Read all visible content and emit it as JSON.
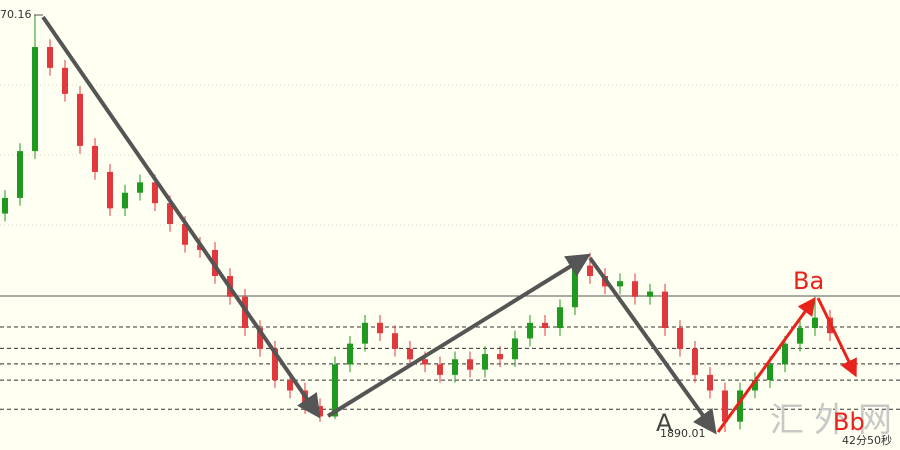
{
  "chart_data": {
    "type": "candlestick",
    "open": [
      1932,
      1935,
      1944,
      1964,
      1960,
      1955,
      1945,
      1940,
      1933,
      1936,
      1938,
      1934,
      1930,
      1926,
      1925,
      1920,
      1916,
      1910,
      1906,
      1900,
      1898,
      1895,
      1893,
      1903,
      1907,
      1911,
      1909,
      1906,
      1904,
      1903,
      1901,
      1904,
      1902,
      1905,
      1904,
      1908,
      1911,
      1910,
      1914,
      1922,
      1920,
      1918,
      1919,
      1916,
      1917,
      1910,
      1906,
      1901,
      1898,
      1892,
      1898,
      1900,
      1903,
      1907,
      1910,
      1912
    ],
    "high": [
      1936.5,
      1945.5,
      1970.16,
      1965.5,
      1961.5,
      1956.5,
      1946.5,
      1941.5,
      1937.5,
      1939.5,
      1939.5,
      1935.5,
      1931.5,
      1927.5,
      1926.5,
      1921.5,
      1917.5,
      1911.5,
      1907.5,
      1901.5,
      1899.5,
      1896.5,
      1904.5,
      1908.5,
      1912.5,
      1912.5,
      1910.5,
      1907.5,
      1905.5,
      1904.5,
      1905.5,
      1905.5,
      1906.5,
      1906.5,
      1909.5,
      1912.5,
      1912.5,
      1915.5,
      1923.5,
      1924.5,
      1921.5,
      1920.5,
      1920.5,
      1918.5,
      1918.5,
      1911.5,
      1907.5,
      1902.5,
      1899.5,
      1899.5,
      1901.5,
      1904.5,
      1908.5,
      1911.5,
      1916,
      1913.5
    ],
    "low": [
      1930.5,
      1933.5,
      1942.5,
      1958.5,
      1953.5,
      1943.5,
      1938.5,
      1931.5,
      1931.5,
      1934.5,
      1932.5,
      1928.5,
      1924.5,
      1923.5,
      1918.5,
      1914.5,
      1908.5,
      1904.5,
      1898.5,
      1896.5,
      1893.5,
      1892,
      1892.5,
      1901.5,
      1905.5,
      1907.5,
      1904.5,
      1902.5,
      1901.5,
      1899.5,
      1899.5,
      1900.5,
      1900.5,
      1902.5,
      1902.5,
      1906.5,
      1908.5,
      1908.5,
      1912.5,
      1918.5,
      1916.5,
      1916.5,
      1914.5,
      1914.5,
      1908.5,
      1904.5,
      1899.5,
      1896.5,
      1890.01,
      1890.5,
      1896.5,
      1898.5,
      1901.5,
      1905.5,
      1908.5,
      1907.5
    ],
    "close": [
      1935,
      1944,
      1964,
      1960,
      1955,
      1945,
      1940,
      1933,
      1936,
      1938,
      1934,
      1930,
      1926,
      1925,
      1920,
      1916,
      1910,
      1906,
      1900,
      1898,
      1895,
      1893,
      1903,
      1907,
      1911,
      1909,
      1906,
      1904,
      1903,
      1901,
      1904,
      1902,
      1905,
      1904,
      1908,
      1911,
      1910,
      1914,
      1922,
      1920,
      1918,
      1919,
      1916,
      1917,
      1910,
      1906,
      1901,
      1898,
      1892,
      1898,
      1900,
      1903,
      1907,
      1910,
      1912,
      1909
    ],
    "up_color": "#1f9a1f",
    "down_color": "#e0383d",
    "ylim": [
      1886.56,
      1973.04
    ],
    "levels": [
      {
        "value": 1916.15,
        "style": "solid"
      },
      {
        "value": 1910.2,
        "style": "dashed"
      },
      {
        "value": 1906.1,
        "style": "dashed"
      },
      {
        "value": 1903.1,
        "style": "dashed"
      },
      {
        "value": 1900.0,
        "style": "dashed"
      },
      {
        "value": 1894.4,
        "style": "dashed"
      }
    ],
    "high_label": "70.16",
    "low_label": "1890.01",
    "timer": "42分50秒",
    "annotations": [
      "A",
      "Ba",
      "Bb"
    ],
    "watermark": "汇外网"
  }
}
